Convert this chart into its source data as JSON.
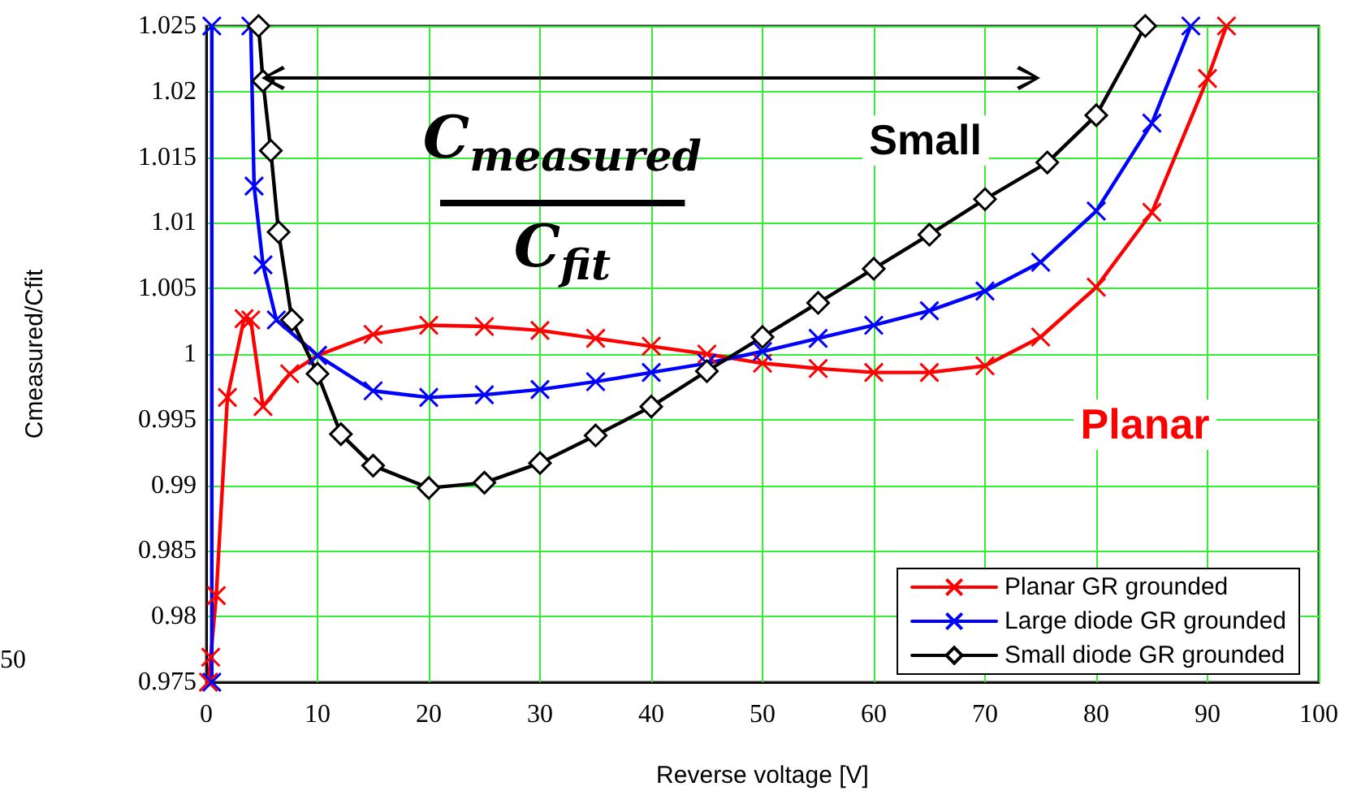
{
  "chart_data": {
    "type": "line",
    "xlabel": "Reverse voltage [V]",
    "ylabel": "Cmeasured/Cfit",
    "xlim": [
      0,
      100
    ],
    "xticks": [
      0,
      10,
      20,
      30,
      40,
      50,
      60,
      70,
      80,
      90,
      100
    ],
    "ylim": [
      0.975,
      1.025
    ],
    "yticks": [
      0.975,
      0.98,
      0.985,
      0.99,
      0.995,
      1,
      1.005,
      1.01,
      1.015,
      1.02,
      1.025
    ],
    "grid": true,
    "legend": "bottom right",
    "annotations": [
      "C$_{measured}$",
      "C$_{fit}$",
      "Small",
      "Planar",
      "50"
    ],
    "series": [
      {
        "name": "Planar GR grounded",
        "color": "#ff0000",
        "marker": "cross",
        "x": [
          0.2,
          0.4,
          0.9,
          1.9,
          3.4,
          4,
          5.1,
          7.5,
          10,
          15,
          20,
          25,
          30,
          35,
          40,
          45,
          50,
          55,
          60,
          65,
          70,
          75,
          80,
          85,
          90,
          91.7
        ],
        "values": [
          0.975,
          0.9769,
          0.9816,
          0.9967,
          1.0027,
          1.0026,
          0.996,
          0.9985,
          0.9999,
          1.0015,
          1.0022,
          1.0021,
          1.0018,
          1.0012,
          1.0006,
          1.0,
          0.9993,
          0.9989,
          0.9986,
          0.9986,
          0.9991,
          1.0013,
          1.0051,
          1.0108,
          1.021,
          1.025
        ]
      },
      {
        "name": "Large diode GR grounded",
        "color": "#0000ff",
        "marker": "cross",
        "x": [
          0.5,
          0.5,
          null,
          4,
          4.3,
          5.1,
          6.3,
          10,
          15,
          20,
          25,
          30,
          35,
          40,
          45,
          50,
          55,
          60,
          65,
          70,
          75,
          80,
          85,
          88.5
        ],
        "values": [
          0.975,
          1.025,
          null,
          1.025,
          1.0128,
          1.0068,
          1.0026,
          0.9999,
          0.9972,
          0.9967,
          0.9969,
          0.9973,
          0.9979,
          0.9986,
          0.9993,
          1.0002,
          1.0012,
          1.0022,
          1.0033,
          1.0048,
          1.007,
          1.0109,
          1.0176,
          1.025
        ]
      },
      {
        "name": "Small diode GR grounded",
        "color": "#000000",
        "marker": "diamond",
        "x": [
          4.7,
          5.1,
          5.8,
          6.5,
          7.7,
          10,
          12.1,
          15,
          20,
          25,
          30,
          35,
          40,
          45,
          50,
          55,
          60,
          65,
          70,
          75.6,
          80,
          84.4
        ],
        "values": [
          1.025,
          1.0208,
          1.0155,
          1.0093,
          1.0026,
          0.9985,
          0.9939,
          0.9915,
          0.9898,
          0.9902,
          0.9917,
          0.9938,
          0.996,
          0.9987,
          1.0013,
          1.0039,
          1.0065,
          1.0091,
          1.0118,
          1.0146,
          1.0182,
          1.025
        ]
      }
    ]
  }
}
